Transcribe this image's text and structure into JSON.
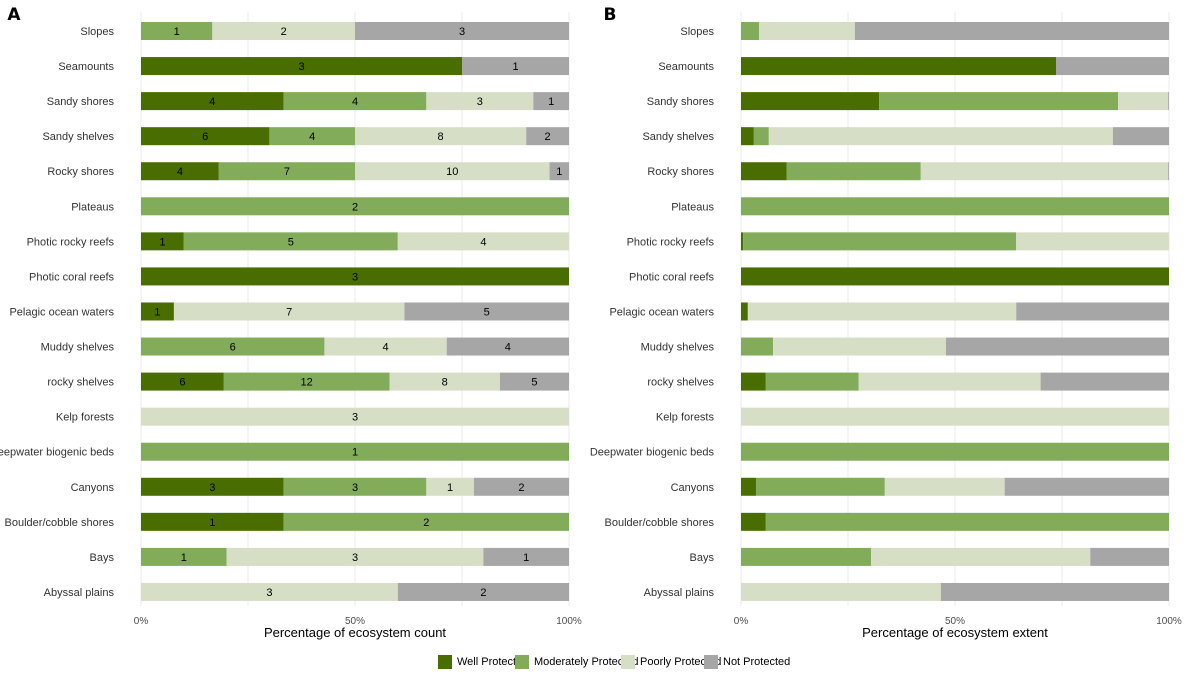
{
  "colors": {
    "Well Protected": "#4a6d00",
    "Moderately Protected": "#82ab5a",
    "Poorly Protected": "#d6dec6",
    "Not Protected": "#a6a6a6"
  },
  "legend": {
    "items": [
      "Well Protected",
      "Moderately Protected",
      "Poorly Protected",
      "Not Protected"
    ]
  },
  "chart_data": [
    {
      "type": "bar",
      "orientation": "horizontal",
      "stacked": "percent",
      "panel": "A",
      "xlabel": "Percentage of ecosystem count",
      "xticks": [
        "0%",
        "50%",
        "100%"
      ],
      "categories": [
        "Slopes",
        "Seamounts",
        "Sandy shores",
        "Sandy shelves",
        "Rocky shores",
        "Plateaus",
        "Photic rocky reefs",
        "Photic coral reefs",
        "Pelagic ocean waters",
        "Muddy shelves",
        "rocky shelves",
        "Kelp forests",
        "Deepwater biogenic beds",
        "Canyons",
        "Boulder/cobble shores",
        "Bays",
        "Abyssal plains"
      ],
      "series": [
        {
          "name": "Well Protected",
          "values": [
            0,
            3,
            4,
            6,
            4,
            0,
            1,
            3,
            1,
            0,
            6,
            0,
            0,
            3,
            1,
            0,
            0
          ]
        },
        {
          "name": "Moderately Protected",
          "values": [
            1,
            0,
            4,
            4,
            7,
            2,
            5,
            0,
            0,
            6,
            12,
            0,
            1,
            3,
            2,
            1,
            0
          ]
        },
        {
          "name": "Poorly Protected",
          "values": [
            2,
            0,
            3,
            8,
            10,
            0,
            4,
            0,
            7,
            4,
            8,
            3,
            0,
            1,
            0,
            3,
            3
          ]
        },
        {
          "name": "Not Protected",
          "values": [
            3,
            1,
            1,
            2,
            1,
            0,
            0,
            0,
            5,
            4,
            5,
            0,
            0,
            2,
            0,
            1,
            2
          ]
        }
      ]
    },
    {
      "type": "bar",
      "orientation": "horizontal",
      "stacked": "percent",
      "panel": "B",
      "xlabel": "Percentage of ecosystem extent",
      "xticks": [
        "0%",
        "50%",
        "100%"
      ],
      "categories": [
        "Slopes",
        "Seamounts",
        "Sandy shores",
        "Sandy shelves",
        "Rocky shores",
        "Plateaus",
        "Photic rocky reefs",
        "Photic coral reefs",
        "Pelagic ocean waters",
        "Muddy shelves",
        "rocky shelves",
        "Kelp forests",
        "Deepwater biogenic beds",
        "Canyons",
        "Boulder/cobble shores",
        "Bays",
        "Abyssal plains"
      ],
      "series": [
        {
          "name": "Well Protected",
          "values": [
            0,
            73.6,
            32.3,
            3.0,
            10.7,
            0,
            0.5,
            100,
            1.6,
            0,
            5.8,
            0,
            0,
            3.5,
            5.8,
            0,
            0
          ]
        },
        {
          "name": "Moderately Protected",
          "values": [
            4.2,
            0,
            55.8,
            3.5,
            31.3,
            100,
            63.8,
            0,
            0,
            7.5,
            21.7,
            0,
            100,
            30.1,
            94.2,
            30.4,
            0
          ]
        },
        {
          "name": "Poorly Protected",
          "values": [
            22.4,
            0,
            11.7,
            80.4,
            57.8,
            0,
            35.7,
            0,
            62.7,
            40.4,
            42.5,
            100,
            0,
            28.0,
            0,
            51.2,
            46.7
          ]
        },
        {
          "name": "Not Protected",
          "values": [
            73.4,
            26.4,
            0.2,
            13.1,
            0.2,
            0,
            0,
            0,
            35.7,
            52.1,
            30.0,
            0,
            0,
            38.4,
            0,
            18.4,
            53.3
          ]
        }
      ]
    }
  ]
}
